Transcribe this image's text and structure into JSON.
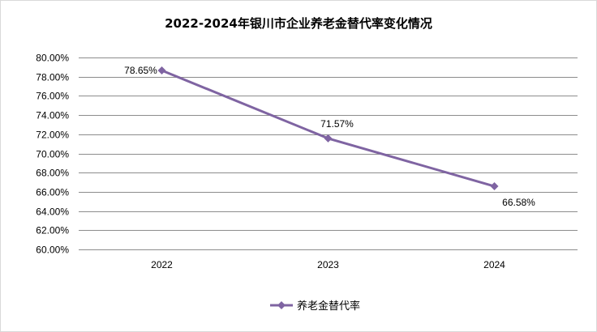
{
  "chart_data": {
    "type": "line",
    "title": "2022-2024年银川市企业养老金替代率变化情况",
    "categories": [
      "2022",
      "2023",
      "2024"
    ],
    "series": [
      {
        "name": "养老金替代率",
        "values": [
          78.65,
          71.57,
          66.58
        ],
        "labels": [
          "78.65%",
          "71.57%",
          "66.58%"
        ]
      }
    ],
    "ylim": [
      60,
      80
    ],
    "ytick_step": 2,
    "ytick_labels": [
      "60.00%",
      "62.00%",
      "64.00%",
      "66.00%",
      "68.00%",
      "70.00%",
      "72.00%",
      "74.00%",
      "76.00%",
      "78.00%",
      "80.00%"
    ],
    "grid": true,
    "legend": "bottom",
    "colors": {
      "series": "#7f64a2",
      "grid": "#8c8c8c",
      "border": "#d9d9d9"
    },
    "marker": "diamond"
  }
}
